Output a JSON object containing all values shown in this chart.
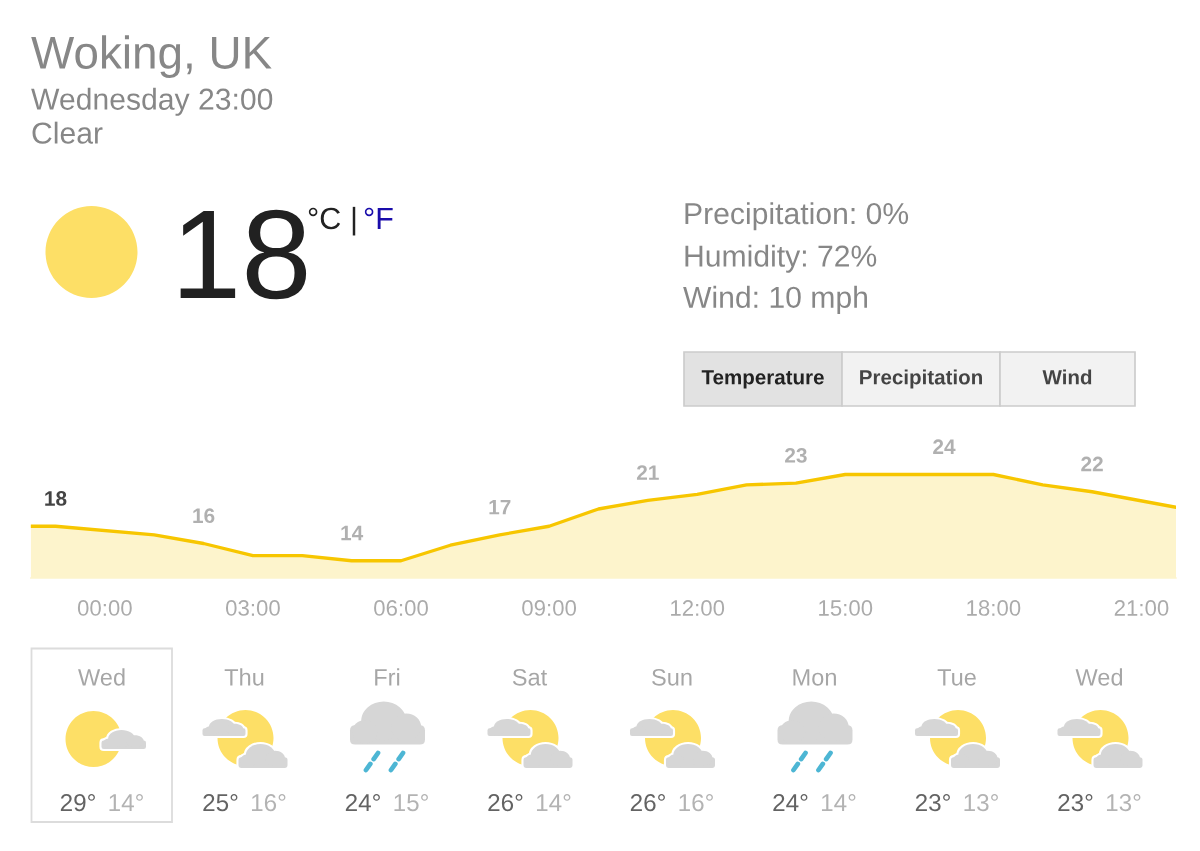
{
  "chart_data": [
    {
      "type": "other",
      "title": "Woking, UK",
      "subtitle": "Wednesday 23:00",
      "annotations": [
        "Clear",
        "18",
        "°C",
        "|",
        "°F",
        "Precipitation: 0%",
        "Humidity: 72%",
        "Wind: 10 mph",
        "Temperature",
        "Precipitation",
        "Wind"
      ]
    },
    {
      "type": "area",
      "x": [
        -1.5,
        -1,
        1,
        2,
        3,
        4,
        5,
        6,
        7,
        8,
        9,
        10,
        11,
        12,
        13,
        14,
        15,
        17,
        18,
        19,
        20,
        21.7
      ],
      "series": [
        {
          "color": "#f7c600",
          "values": [
            18,
            18,
            17,
            16,
            14.6,
            14.6,
            14,
            14,
            15.8,
            17,
            18,
            20,
            21,
            21.7,
            22.8,
            23,
            24,
            24,
            24,
            22.8,
            22,
            20.2
          ],
          "value_labels": [
            null,
            "18",
            null,
            "16",
            null,
            null,
            "14",
            null,
            null,
            "17",
            null,
            null,
            "21",
            null,
            null,
            "23",
            null,
            "24",
            null,
            null,
            "22",
            null
          ]
        }
      ],
      "xlim": [
        -1.5,
        21.7
      ],
      "xticks": [
        {
          "value": 0,
          "label": "00:00"
        },
        {
          "value": 3,
          "label": "03:00"
        },
        {
          "value": 6,
          "label": "06:00"
        },
        {
          "value": 9,
          "label": "09:00"
        },
        {
          "value": 12,
          "label": "12:00"
        },
        {
          "value": 15,
          "label": "15:00"
        },
        {
          "value": 18,
          "label": "18:00"
        },
        {
          "value": 21,
          "label": "21:00"
        }
      ],
      "tick_labels": "x"
    },
    {
      "type": "other",
      "categories": [
        "Wed",
        "Thu",
        "Fri",
        "Sat",
        "Sun",
        "Mon",
        "Tue",
        "Wed"
      ],
      "series": [
        {
          "values": [
            29,
            25,
            24,
            26,
            26,
            24,
            23,
            23
          ],
          "value_labels": [
            "29°",
            "25°",
            "24°",
            "26°",
            "26°",
            "24°",
            "23°",
            "23°"
          ]
        },
        {
          "values": [
            14,
            16,
            15,
            14,
            16,
            14,
            13,
            13
          ],
          "value_labels": [
            "14°",
            "16°",
            "15°",
            "14°",
            "16°",
            "14°",
            "13°",
            "13°"
          ]
        }
      ]
    }
  ]
}
